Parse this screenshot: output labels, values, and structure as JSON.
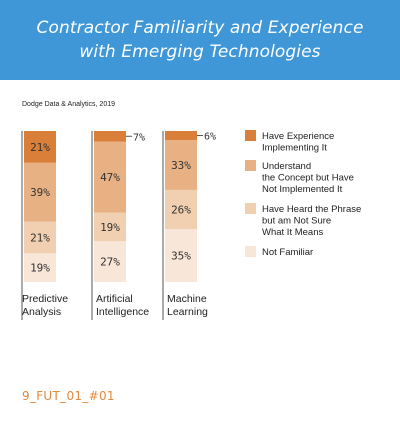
{
  "header": {
    "title_line1": "Contractor Familiarity and Experience",
    "title_line2": "with Emerging Technologies"
  },
  "source": "Dodge Data & Analytics, 2019",
  "figure_code": "9_FUT_01_#01",
  "colors": {
    "header_bg": "#3f97d7",
    "have_experience": "#d97f3a",
    "understand": "#e7b184",
    "heard": "#f1cfb1",
    "not_familiar": "#f8e6d8",
    "code_text": "#e2893f"
  },
  "chart_data": {
    "type": "bar",
    "stacked": true,
    "orientation": "vertical",
    "unit": "%",
    "categories": [
      [
        "Predictive",
        "Analysis"
      ],
      [
        "Artificial",
        "Intelligence"
      ],
      [
        "Machine",
        "Learning"
      ]
    ],
    "ylim": [
      0,
      100
    ],
    "series": [
      {
        "name": "Not Familiar",
        "values": [
          19,
          27,
          35
        ],
        "color": "#f8e6d8"
      },
      {
        "name": "Have Heard the Phrase but am Not Sure What It Means",
        "values": [
          21,
          19,
          26
        ],
        "color": "#f1cfb1"
      },
      {
        "name": "Understand the Concept but Have Not Implemented It",
        "values": [
          39,
          47,
          33
        ],
        "color": "#e7b184"
      },
      {
        "name": "Have Experience Implementing It",
        "values": [
          21,
          7,
          6
        ],
        "color": "#d97f3a"
      }
    ],
    "data_labels": [
      [
        "19%",
        "21%",
        "39%",
        "21%"
      ],
      [
        "27%",
        "19%",
        "47%",
        "7%"
      ],
      [
        "35%",
        "26%",
        "33%",
        "6%"
      ]
    ],
    "legend": {
      "position": "right",
      "items": [
        {
          "lines": [
            "Have Experience",
            "Implementing It"
          ],
          "color": "#d97f3a"
        },
        {
          "lines": [
            "Understand",
            "the Concept but Have",
            "Not Implemented It"
          ],
          "color": "#e7b184"
        },
        {
          "lines": [
            "Have Heard the Phrase",
            "but am Not Sure",
            "What It Means"
          ],
          "color": "#f1cfb1"
        },
        {
          "lines": [
            "Not Familiar"
          ],
          "color": "#f8e6d8"
        }
      ]
    }
  }
}
